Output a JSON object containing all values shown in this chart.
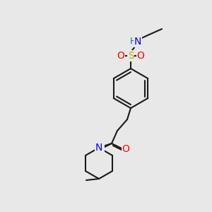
{
  "bg_color": "#e8e8e8",
  "bond_color": "#1a1a1a",
  "bond_width": 1.5,
  "atom_colors": {
    "N": "#0000ff",
    "O": "#ff0000",
    "S": "#ccaa00",
    "H": "#008080",
    "C": "#1a1a1a"
  },
  "font_size": 9
}
